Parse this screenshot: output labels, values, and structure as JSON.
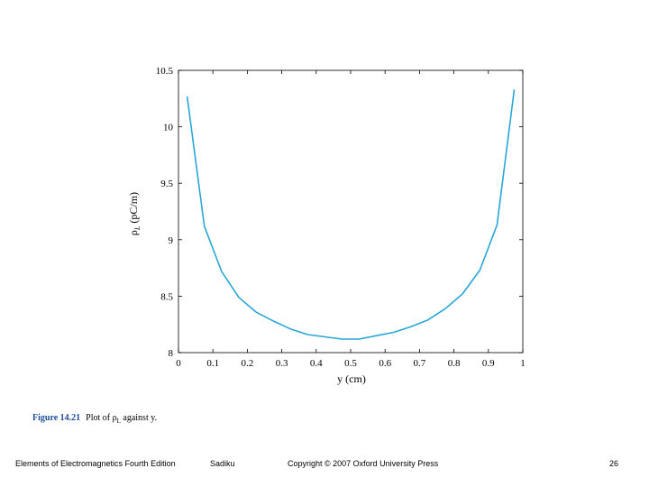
{
  "chart_data": {
    "type": "line",
    "xlabel": "y (cm)",
    "ylabel": "ρL (pC/m)",
    "ylabel_parts": {
      "symbol": "ρ",
      "subscript": "L",
      "unit": "(pC/m)"
    },
    "xlim": [
      0,
      1
    ],
    "ylim": [
      8,
      10.5
    ],
    "xticks": [
      "0",
      "0.1",
      "0.2",
      "0.3",
      "0.4",
      "0.5",
      "0.6",
      "0.7",
      "0.8",
      "0.9",
      "1"
    ],
    "yticks": [
      "8",
      "8.5",
      "9",
      "9.5",
      "10",
      "10.5"
    ],
    "grid": false,
    "series": [
      {
        "color": "#29a6d6",
        "x": [
          0.025,
          0.075,
          0.125,
          0.175,
          0.225,
          0.275,
          0.325,
          0.375,
          0.425,
          0.475,
          0.525,
          0.575,
          0.625,
          0.675,
          0.725,
          0.775,
          0.825,
          0.875,
          0.925,
          0.975
        ],
        "y": [
          10.27,
          9.12,
          8.72,
          8.49,
          8.36,
          8.28,
          8.21,
          8.16,
          8.14,
          8.12,
          8.12,
          8.15,
          8.18,
          8.23,
          8.29,
          8.39,
          8.52,
          8.73,
          9.13,
          10.33
        ]
      }
    ]
  },
  "caption": {
    "figure_label": "Figure 14.21",
    "text_before": "Plot of ",
    "symbol": "ρ",
    "subscript": "L",
    "text_after": " against y."
  },
  "footer": {
    "book": "Elements of Electromagnetics Fourth Edition",
    "author": "Sadiku",
    "copyright": "Copyright © 2007 Oxford University Press",
    "page": "26"
  }
}
